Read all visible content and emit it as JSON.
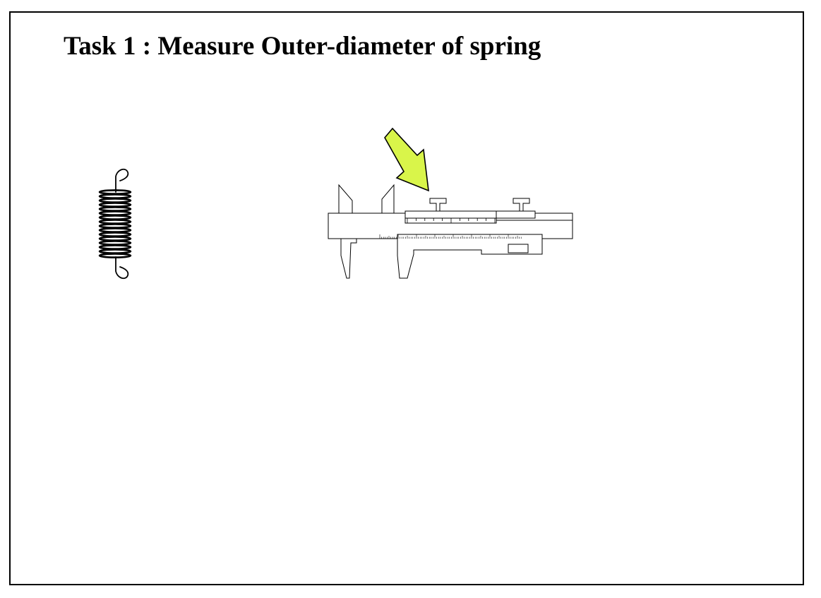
{
  "slide": {
    "title": "Task 1 : Measure Outer-diameter of spring"
  },
  "illustrations": {
    "spring": {
      "icon": "spring-icon"
    },
    "caliper": {
      "icon": "vernier-caliper-icon"
    },
    "pointer": {
      "icon": "arrow-icon",
      "fill_color": "#d9f54a",
      "stroke_color": "#000000"
    }
  }
}
